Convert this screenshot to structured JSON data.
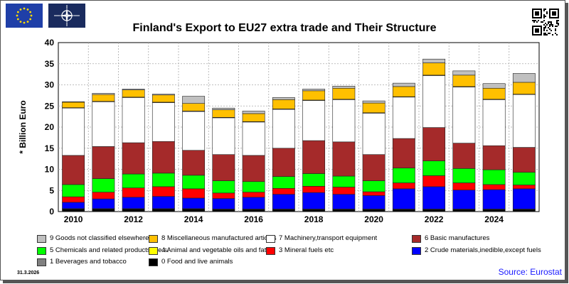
{
  "title": "Finland's Export to EU27 extra trade and Their Structure",
  "date": "31.3.2026",
  "source": "Source: Eurostat",
  "colors": {
    "0": "#000000",
    "1": "#808080",
    "2": "#0000ff",
    "3": "#ff0000",
    "4": "#ffff00",
    "5": "#00ff00",
    "6": "#a52a2a",
    "7": "#ffffff",
    "8": "#ffc000",
    "9": "#c0c0c0"
  },
  "chart_data": {
    "type": "bar",
    "stacked": true,
    "ylabel": "* Billion Euro",
    "ylim": [
      0,
      40
    ],
    "yticks": [
      0,
      5,
      10,
      15,
      20,
      25,
      30,
      35,
      40
    ],
    "grid": true,
    "categories": [
      "2010",
      "2011",
      "2012",
      "2013",
      "2014",
      "2015",
      "2016",
      "2017",
      "2018",
      "2019",
      "2020",
      "2021",
      "2022",
      "2023",
      "2024",
      "2025"
    ],
    "xtick_labels": [
      "2010",
      "2012",
      "2014",
      "2016",
      "2018",
      "2020",
      "2022",
      "2024"
    ],
    "series": [
      {
        "name": "0 Food and live animals",
        "color_key": "0",
        "values": [
          0.6,
          0.6,
          0.6,
          0.6,
          0.6,
          0.5,
          0.5,
          0.5,
          0.5,
          0.5,
          0.5,
          0.5,
          0.5,
          0.5,
          0.5,
          0.5
        ]
      },
      {
        "name": "1 Beverages and tobacco",
        "color_key": "1",
        "values": [
          0.1,
          0.1,
          0.1,
          0.1,
          0.1,
          0.1,
          0.1,
          0.1,
          0.1,
          0.1,
          0.1,
          0.1,
          0.1,
          0.1,
          0.1,
          0.1
        ]
      },
      {
        "name": "2 Crude materials,inedible,except fuels",
        "color_key": "2",
        "values": [
          1.5,
          2.3,
          2.7,
          2.9,
          2.5,
          2.5,
          2.8,
          3.5,
          3.9,
          3.5,
          3.2,
          4.8,
          5.3,
          4.5,
          4.6,
          4.8
        ]
      },
      {
        "name": "3 Mineral fuels etc",
        "color_key": "3",
        "values": [
          1.3,
          1.6,
          2.2,
          2.3,
          2.2,
          1.3,
          1.2,
          1.4,
          1.5,
          1.7,
          0.9,
          1.4,
          2.6,
          1.7,
          1.2,
          0.9
        ]
      },
      {
        "name": "5 Chemicals and related products,n.e.s.",
        "color_key": "5",
        "values": [
          2.9,
          3.2,
          3.3,
          3.2,
          3.2,
          2.9,
          2.5,
          2.8,
          3.0,
          2.6,
          2.6,
          3.5,
          3.5,
          3.4,
          3.5,
          3.0
        ]
      },
      {
        "name": "6 Basic manufactures",
        "color_key": "6",
        "values": [
          6.9,
          7.6,
          7.4,
          7.5,
          5.9,
          6.2,
          6.2,
          6.7,
          7.8,
          8.1,
          6.2,
          7.0,
          7.9,
          6.0,
          5.7,
          5.9
        ]
      },
      {
        "name": "7 Machinery,transport equipment",
        "color_key": "7",
        "values": [
          11.2,
          10.6,
          10.7,
          9.2,
          9.2,
          8.7,
          7.9,
          9.2,
          9.5,
          10.0,
          9.8,
          9.8,
          12.3,
          13.3,
          10.9,
          12.5
        ]
      },
      {
        "name": "4 Animal and vegetable oils and fats",
        "color_key": "4",
        "values": [
          0.1,
          0.1,
          0.1,
          0.1,
          0.1,
          0.1,
          0.1,
          0.1,
          0.1,
          0.1,
          0.1,
          0.1,
          0.1,
          0.1,
          0.1,
          0.1
        ]
      },
      {
        "name": "8 Miscellaneous manufactured articles",
        "color_key": "8",
        "values": [
          1.3,
          1.6,
          1.7,
          1.7,
          1.8,
          1.8,
          1.9,
          2.2,
          2.2,
          2.6,
          2.3,
          2.4,
          2.9,
          2.7,
          2.6,
          2.8
        ]
      },
      {
        "name": "9 Goods not classified elsewhere",
        "color_key": "9",
        "values": [
          0.1,
          0.3,
          0.2,
          0.2,
          1.7,
          0.4,
          0.6,
          0.5,
          0.4,
          0.5,
          0.5,
          0.8,
          0.9,
          1.0,
          1.1,
          2.1
        ]
      }
    ]
  },
  "legend": [
    [
      {
        "label": "9 Goods not classified elsewhere",
        "color_key": "9"
      },
      {
        "label": "8 Miscellaneous manufactured articles",
        "color_key": "8"
      },
      {
        "label": "7 Machinery,transport equipment",
        "color_key": "7"
      },
      {
        "label": "6 Basic manufactures",
        "color_key": "6"
      }
    ],
    [
      {
        "label": "5 Chemicals and related products,n.e.s.",
        "color_key": "5"
      },
      {
        "label": "4 Animal and vegetable oils and fats",
        "color_key": "4"
      },
      {
        "label": "3 Mineral fuels etc",
        "color_key": "3"
      },
      {
        "label": "2 Crude materials,inedible,except fuels",
        "color_key": "2"
      }
    ],
    [
      {
        "label": "1 Beverages and tobacco",
        "color_key": "1"
      },
      {
        "label": "0 Food and live animals",
        "color_key": "0"
      }
    ]
  ]
}
